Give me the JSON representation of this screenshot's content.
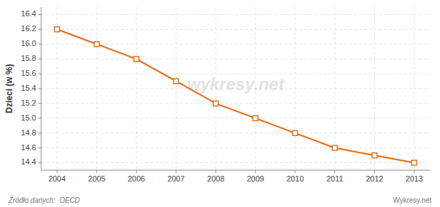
{
  "chart_data": {
    "type": "line",
    "ylabel": "Dzieci (w %)",
    "x": [
      2004,
      2005,
      2006,
      2007,
      2008,
      2009,
      2010,
      2011,
      2012,
      2013
    ],
    "values": [
      16.2,
      16.0,
      15.8,
      15.5,
      15.2,
      15.0,
      14.8,
      14.6,
      14.5,
      14.4
    ],
    "color": "#e8701a",
    "marker": "square",
    "xlim": [
      2003.6,
      2013.4
    ],
    "xticks": [
      2004,
      2005,
      2006,
      2007,
      2008,
      2009,
      2010,
      2011,
      2012,
      2013
    ],
    "ylim": [
      14.3,
      16.5
    ],
    "yticks": [
      14.4,
      14.6,
      14.8,
      {
        "value": 15.0,
        "label": "15.0"
      },
      15.2,
      15.4,
      15.6,
      15.8,
      {
        "value": 16.0,
        "label": "16.0"
      },
      16.2,
      16.4
    ],
    "grid": true,
    "annotations": [
      "wykresy.net",
      "Źródło danych:  OECD",
      "Wykresy.net"
    ]
  }
}
